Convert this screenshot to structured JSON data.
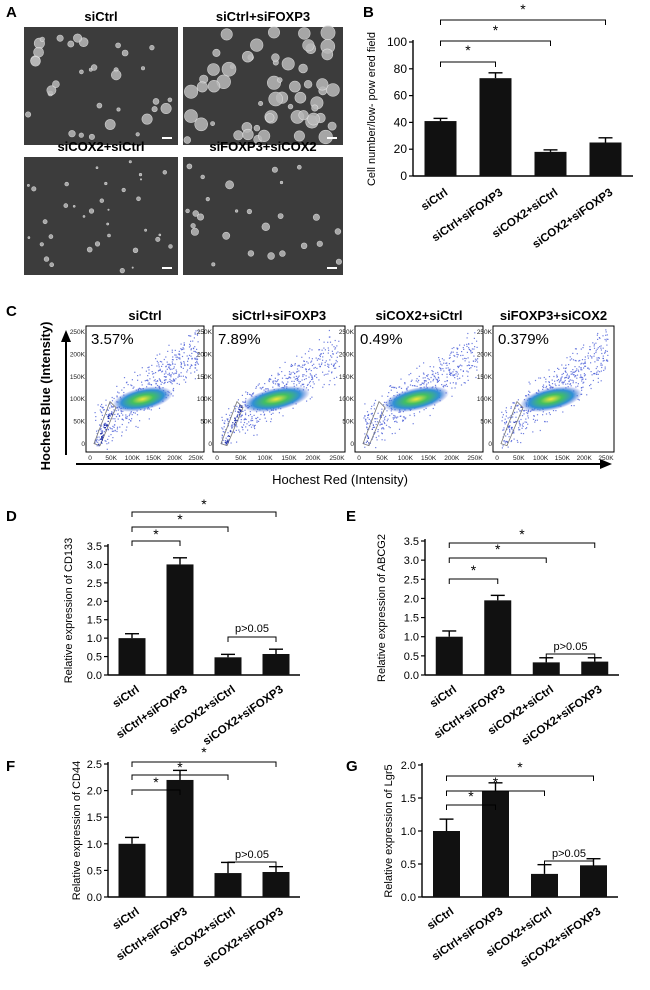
{
  "panel_a": {
    "label": "A",
    "images": [
      {
        "title": "siCtrl",
        "density": 34,
        "size": 1.0
      },
      {
        "title": "siCtrl+siFOXP3",
        "density": 58,
        "size": 1.3
      },
      {
        "title": "siCOX2+siCtrl",
        "density": 34,
        "size": 0.45
      },
      {
        "title": "siFOXP3+siCOX2",
        "density": 26,
        "size": 0.75
      }
    ]
  },
  "panel_c": {
    "label": "C",
    "ylabel": "Hochest Blue (Intensity)",
    "xlabel": "Hochest Red (Intensity)",
    "y_ticks": [
      "250K",
      "200K",
      "150K",
      "100K",
      "50K",
      "0"
    ],
    "x_ticks": [
      "0",
      "50K",
      "100K",
      "150K",
      "200K",
      "250K"
    ],
    "plots": [
      {
        "title": "siCtrl",
        "percent": "3.57%",
        "gate_density": 0.9
      },
      {
        "title": "siCtrl+siFOXP3",
        "percent": "7.89%",
        "gate_density": 1.0
      },
      {
        "title": "siCOX2+siCtrl",
        "percent": "0.49%",
        "gate_density": 0.12
      },
      {
        "title": "siFOXP3+siCOX2",
        "percent": "0.379%",
        "gate_density": 0.1
      }
    ]
  },
  "colors": {
    "bar": "#111111",
    "axis": "#000000",
    "flow_low": "#4b5fd8",
    "flow_high": "#f2e83a"
  },
  "chart_data": [
    {
      "id": "B",
      "label": "B",
      "type": "bar",
      "categories": [
        "siCtrl",
        "siCtrl+siFOXP3",
        "siCOX2+siCtrl",
        "siCOX2+siFOXP3"
      ],
      "values": [
        41,
        73,
        18,
        25
      ],
      "errors": [
        2,
        4,
        1.5,
        3.5
      ],
      "ylabel": "Cell number/low- pow ered field",
      "xlabel": "",
      "ylim": [
        0,
        100
      ],
      "yticks": [
        "0",
        "20",
        "40",
        "60",
        "80",
        "100"
      ],
      "brackets": [
        {
          "from": 0,
          "to": 1,
          "text": "*"
        },
        {
          "from": 0,
          "to": 2,
          "text": "*"
        },
        {
          "from": 0,
          "to": 3,
          "text": "*"
        }
      ]
    },
    {
      "id": "D",
      "label": "D",
      "type": "bar",
      "categories": [
        "siCtrl",
        "siCtrl+siFOXP3",
        "siCOX2+siCtrl",
        "siCOX2+siFOXP3"
      ],
      "values": [
        1.0,
        3.0,
        0.48,
        0.57
      ],
      "errors": [
        0.12,
        0.18,
        0.08,
        0.13
      ],
      "ylabel": "Relative expression of CD133",
      "xlabel": "",
      "ylim": [
        0,
        3.5
      ],
      "yticks": [
        "0.0",
        "0.5",
        "1.0",
        "1.5",
        "2.0",
        "2.5",
        "3.0",
        "3.5"
      ],
      "brackets": [
        {
          "from": 0,
          "to": 1,
          "text": "*"
        },
        {
          "from": 0,
          "to": 2,
          "text": "*"
        },
        {
          "from": 0,
          "to": 3,
          "text": "*"
        },
        {
          "from": 2,
          "to": 3,
          "text": "p>0.05"
        }
      ]
    },
    {
      "id": "E",
      "label": "E",
      "type": "bar",
      "categories": [
        "siCtrl",
        "siCtrl+siFOXP3",
        "siCOX2+siCtrl",
        "siCOX2+siFOXP3"
      ],
      "values": [
        1.0,
        1.95,
        0.33,
        0.35
      ],
      "errors": [
        0.15,
        0.13,
        0.12,
        0.1
      ],
      "ylabel": "Relative expression of ABCG2",
      "xlabel": "",
      "ylim": [
        0,
        3.5
      ],
      "yticks": [
        "0.0",
        "0.5",
        "1.0",
        "1.5",
        "2.0",
        "2.5",
        "3.0",
        "3.5"
      ],
      "brackets": [
        {
          "from": 0,
          "to": 1,
          "text": "*"
        },
        {
          "from": 0,
          "to": 2,
          "text": "*"
        },
        {
          "from": 0,
          "to": 3,
          "text": "*"
        },
        {
          "from": 2,
          "to": 3,
          "text": "p>0.05"
        }
      ]
    },
    {
      "id": "F",
      "label": "F",
      "type": "bar",
      "categories": [
        "siCtrl",
        "siCtrl+siFOXP3",
        "siCOX2+siCtrl",
        "siCOX2+siFOXP3"
      ],
      "values": [
        1.0,
        2.2,
        0.45,
        0.47
      ],
      "errors": [
        0.12,
        0.18,
        0.2,
        0.1
      ],
      "ylabel": "Relative expression of CD44",
      "xlabel": "",
      "ylim": [
        0,
        2.5
      ],
      "yticks": [
        "0.0",
        "0.5",
        "1.0",
        "1.5",
        "2.0",
        "2.5"
      ],
      "brackets": [
        {
          "from": 0,
          "to": 1,
          "text": "*"
        },
        {
          "from": 0,
          "to": 2,
          "text": "*"
        },
        {
          "from": 0,
          "to": 3,
          "text": "*"
        },
        {
          "from": 2,
          "to": 3,
          "text": "p>0.05"
        }
      ]
    },
    {
      "id": "G",
      "label": "G",
      "type": "bar",
      "categories": [
        "siCtrl",
        "siCtrl+siFOXP3",
        "siCOX2+siCtrl",
        "siCOX2+siFOXP3"
      ],
      "values": [
        1.0,
        1.6,
        0.35,
        0.48
      ],
      "errors": [
        0.18,
        0.13,
        0.14,
        0.1
      ],
      "ylabel": "Relative expression of Lgr5",
      "xlabel": "",
      "ylim": [
        0,
        2.0
      ],
      "yticks": [
        "0.0",
        "0.5",
        "1.0",
        "1.5",
        "2.0"
      ],
      "brackets": [
        {
          "from": 0,
          "to": 1,
          "text": "*"
        },
        {
          "from": 0,
          "to": 2,
          "text": "*"
        },
        {
          "from": 0,
          "to": 3,
          "text": "*"
        },
        {
          "from": 2,
          "to": 3,
          "text": "p>0.05"
        }
      ]
    }
  ]
}
